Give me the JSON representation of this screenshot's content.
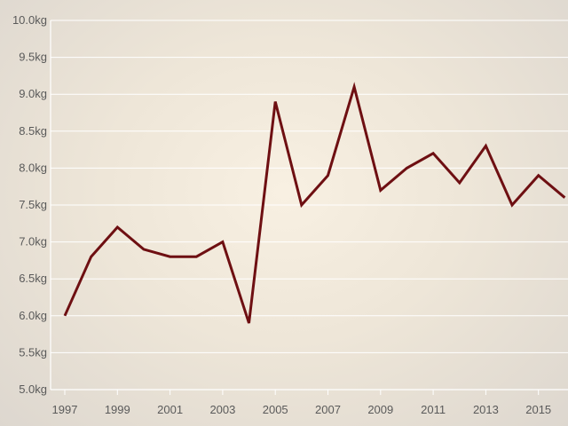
{
  "chart_data": {
    "type": "line",
    "title": "",
    "xlabel": "",
    "ylabel": "",
    "x": [
      1997,
      1998,
      1999,
      2000,
      2001,
      2002,
      2003,
      2004,
      2005,
      2006,
      2007,
      2008,
      2009,
      2010,
      2011,
      2012,
      2013,
      2014,
      2015,
      2016
    ],
    "series": [
      {
        "values": [
          6.0,
          6.8,
          7.2,
          6.9,
          6.8,
          6.8,
          7.0,
          5.9,
          8.9,
          7.5,
          7.9,
          9.1,
          7.7,
          8.0,
          8.2,
          7.8,
          8.3,
          7.5,
          7.9,
          7.6
        ]
      }
    ],
    "x_tick_labels": [
      "1997",
      "1999",
      "2001",
      "2003",
      "2005",
      "2007",
      "2009",
      "2011",
      "2013",
      "2015"
    ],
    "y_tick_labels": [
      "5.0kg",
      "5.5kg",
      "6.0kg",
      "6.5kg",
      "7.0kg",
      "7.5kg",
      "8.0kg",
      "8.5kg",
      "9.0kg",
      "9.5kg",
      "10.0kg"
    ],
    "ylim": [
      5.0,
      10.0
    ],
    "y_unit": "kg",
    "grid": "horizontal",
    "legend": "none",
    "line_color": "#6e0f12"
  }
}
